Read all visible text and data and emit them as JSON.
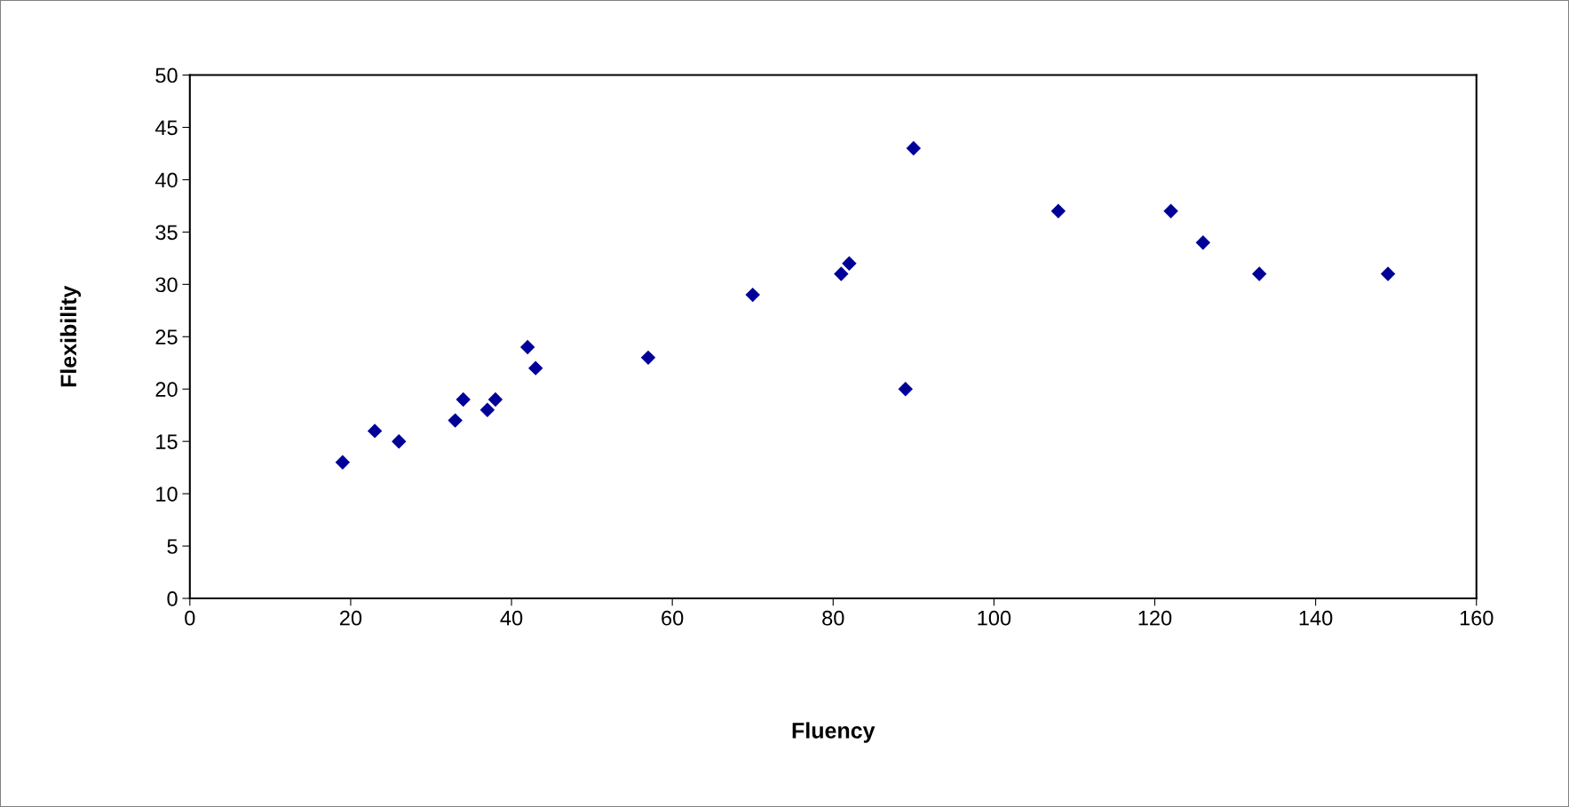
{
  "chart_data": {
    "type": "scatter",
    "xlabel": "Fluency",
    "ylabel": "Flexibility",
    "x": [
      19,
      23,
      26,
      33,
      34,
      37,
      38,
      42,
      43,
      57,
      70,
      81,
      82,
      89,
      90,
      108,
      122,
      126,
      133,
      149
    ],
    "series": [
      {
        "color": "#000099",
        "values": [
          13,
          16,
          15,
          17,
          19,
          18,
          19,
          24,
          22,
          23,
          29,
          31,
          32,
          20,
          43,
          37,
          37,
          34,
          31,
          31
        ]
      }
    ],
    "xlim": [
      0,
      160
    ],
    "xticks": [
      0,
      20,
      40,
      60,
      80,
      100,
      120,
      140,
      160
    ],
    "ylim": [
      0,
      50
    ],
    "yticks": [
      0,
      5,
      10,
      15,
      20,
      25,
      30,
      35,
      40,
      45,
      50
    ],
    "grid": false,
    "legend": false,
    "marker": "diamond"
  }
}
